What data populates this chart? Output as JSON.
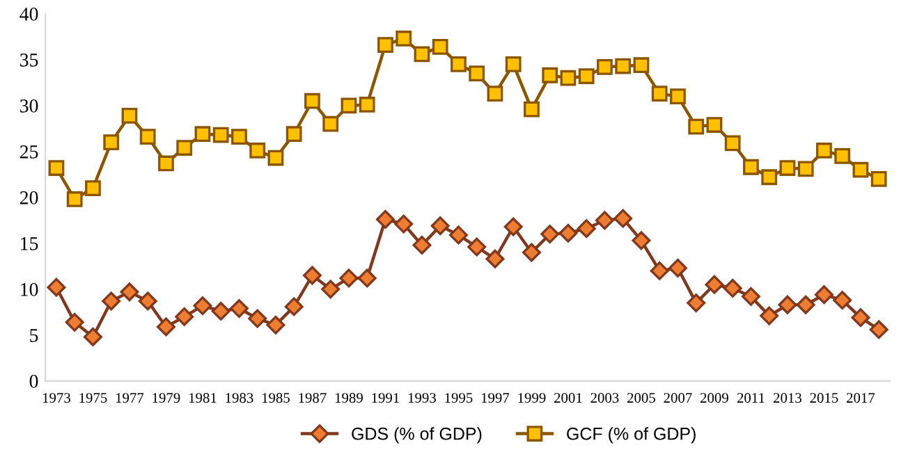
{
  "chart_data": {
    "type": "line",
    "categories": [
      "1973",
      null,
      "1975",
      null,
      "1977",
      null,
      "1979",
      null,
      "1981",
      null,
      "1983",
      null,
      "1985",
      null,
      "1987",
      null,
      "1989",
      null,
      "1991",
      null,
      "1993",
      null,
      "1995",
      null,
      "1997",
      null,
      "1999",
      null,
      "2001",
      null,
      "2003",
      null,
      "2005",
      null,
      "2007",
      null,
      "2009",
      null,
      "2011",
      null,
      "2013",
      null,
      "2015",
      null,
      "2017",
      null
    ],
    "series": [
      {
        "name": "GDS (% of GDP)",
        "color": "#ed7d31",
        "marker": "diamond",
        "values": [
          10.2,
          6.4,
          4.8,
          8.7,
          9.7,
          8.7,
          5.9,
          7.0,
          8.2,
          7.6,
          7.9,
          6.8,
          6.1,
          8.1,
          11.5,
          10.0,
          11.2,
          11.2,
          17.6,
          17.1,
          14.8,
          16.9,
          15.9,
          14.6,
          13.3,
          16.8,
          14.0,
          16.0,
          16.1,
          16.6,
          17.5,
          17.7,
          15.3,
          12.0,
          12.3,
          8.5,
          10.5,
          10.1,
          9.2,
          7.1,
          8.3,
          8.3,
          9.4,
          8.8,
          6.9,
          5.6
        ]
      },
      {
        "name": "GCF (% of GDP)",
        "color": "#ffc000",
        "marker": "square",
        "values": [
          23.2,
          19.8,
          21.0,
          26.0,
          28.9,
          26.6,
          23.7,
          25.4,
          26.9,
          26.8,
          26.6,
          25.1,
          24.3,
          26.9,
          30.5,
          28.0,
          30.0,
          30.1,
          36.6,
          37.3,
          35.6,
          36.4,
          34.5,
          33.5,
          31.3,
          34.5,
          29.6,
          33.3,
          33.0,
          33.2,
          34.2,
          34.3,
          34.4,
          31.3,
          31.0,
          27.7,
          27.9,
          25.9,
          23.3,
          22.2,
          23.2,
          23.1,
          25.1,
          24.5,
          23.0,
          22.0
        ]
      }
    ],
    "ylim": [
      0,
      40
    ],
    "yticks": [
      0,
      5,
      10,
      15,
      20,
      25,
      30,
      35,
      40
    ],
    "grid": false,
    "legend": "bottom",
    "line_style": "solid"
  }
}
